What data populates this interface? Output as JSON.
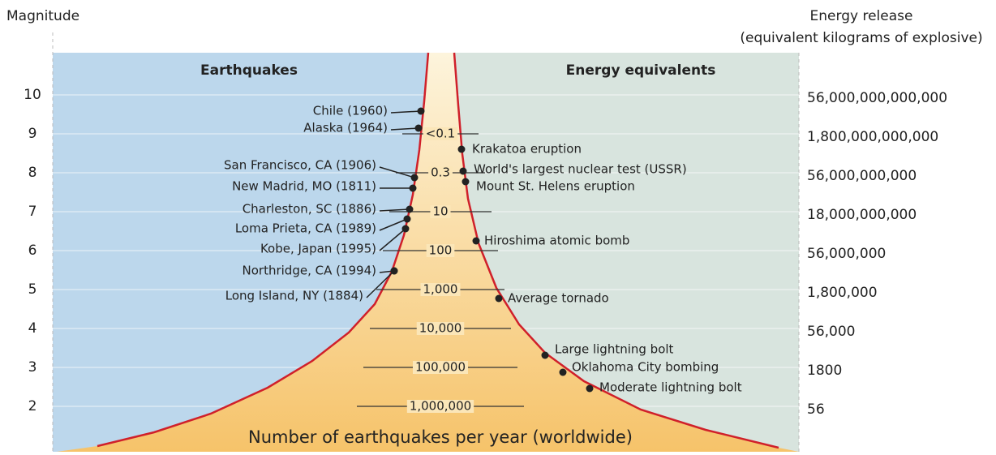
{
  "header": {
    "left_axis_title": "Magnitude",
    "right_axis_title": "Energy release",
    "right_axis_subtitle": "(equivalent kilograms of explosive)"
  },
  "panels": {
    "left": "Earthquakes",
    "right": "Energy equivalents",
    "bottom": "Number of earthquakes per year (worldwide)"
  },
  "magnitudes": [
    "10",
    "9",
    "8",
    "7",
    "6",
    "5",
    "4",
    "3",
    "2"
  ],
  "energies": [
    "56,000,000,000,000",
    "1,800,000,000,000",
    "56,000,000,000",
    "18,000,000,000",
    "56,000,000",
    "1,800,000",
    "56,000",
    "1800",
    "56"
  ],
  "frequencies": [
    "<0.1",
    "0.3",
    "10",
    "100",
    "1,000",
    "10,000",
    "100,000",
    "1,000,000"
  ],
  "earthquakes": [
    "Chile (1960)",
    "Alaska (1964)",
    "San Francisco, CA (1906)",
    "New Madrid, MO (1811)",
    "Charleston, SC (1886)",
    "Loma Prieta, CA (1989)",
    "Kobe, Japan (1995)",
    "Northridge, CA (1994)",
    "Long Island, NY (1884)"
  ],
  "equivalents": [
    "Krakatoa eruption",
    "World's largest nuclear test (USSR)",
    "Mount St. Helens eruption",
    "Hiroshima atomic bomb",
    "Average tornado",
    "Large lightning bolt",
    "Oklahoma City bombing",
    "Moderate lightning bolt"
  ]
}
